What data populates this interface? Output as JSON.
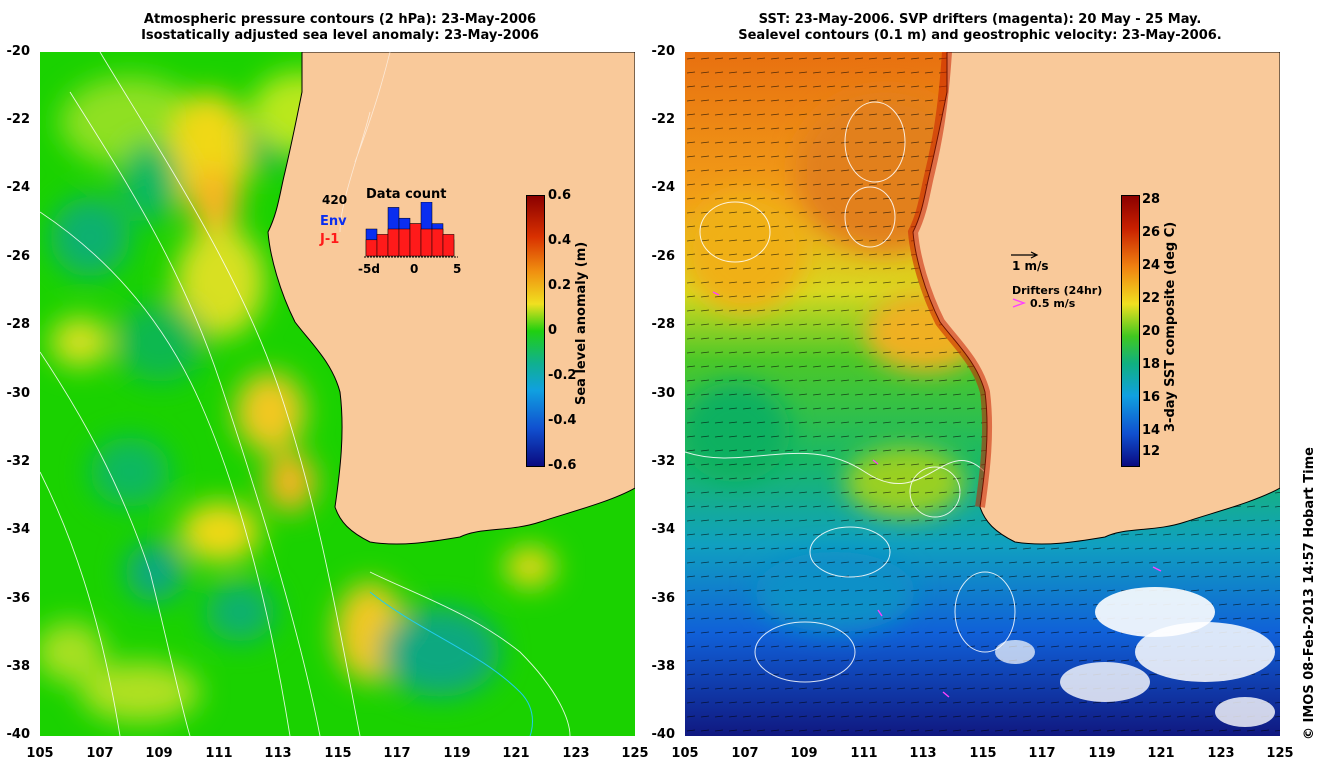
{
  "left_panel": {
    "title_line1": "Atmospheric pressure contours (2 hPa): 23-May-2006",
    "title_line2": "Isostatically adjusted sea level anomaly: 23-May-2006",
    "colorbar_title": "Sea level anomaly (m)",
    "colorbar_ticks": [
      "0.6",
      "0.4",
      "0.2",
      "0",
      "-0.2",
      "-0.4",
      "-0.6"
    ],
    "inset": {
      "title": "Data count",
      "count_label": "420",
      "env_label": "Env",
      "j1_label": "J-1",
      "x_ticks": [
        "-5d",
        "0",
        "5"
      ],
      "env_counts": [
        5,
        2,
        9,
        7,
        6,
        10,
        6,
        3
      ],
      "j1_counts": [
        3,
        4,
        5,
        5,
        6,
        5,
        5,
        4
      ]
    }
  },
  "right_panel": {
    "title_line1": "SST: 23-May-2006. SVP drifters (magenta): 20 May - 25 May.",
    "title_line2": "Sealevel contours (0.1 m) and geostrophic velocity: 23-May-2006.",
    "colorbar_title": "3-day SST composite (deg C)",
    "colorbar_ticks": [
      "28",
      "26",
      "24",
      "22",
      "20",
      "18",
      "16",
      "14",
      "12"
    ],
    "velocity_scale_label": "1 m/s",
    "drifters_label": "Drifters (24hr)",
    "drifter_scale_label": "0.5 m/s"
  },
  "axes": {
    "y_ticks": [
      "-20",
      "-22",
      "-24",
      "-26",
      "-28",
      "-30",
      "-32",
      "-34",
      "-36",
      "-38",
      "-40"
    ],
    "x_ticks": [
      "105",
      "107",
      "109",
      "111",
      "113",
      "115",
      "117",
      "119",
      "121",
      "123",
      "125"
    ]
  },
  "credit": "© IMOS 08-Feb-2013 14:57 Hobart Time",
  "colors": {
    "land": "#f9c99a",
    "sla_green": "#22d010",
    "env_bar": "#0a2ef0",
    "j1_bar": "#ff1a1a",
    "drifter": "#ff40ff"
  }
}
